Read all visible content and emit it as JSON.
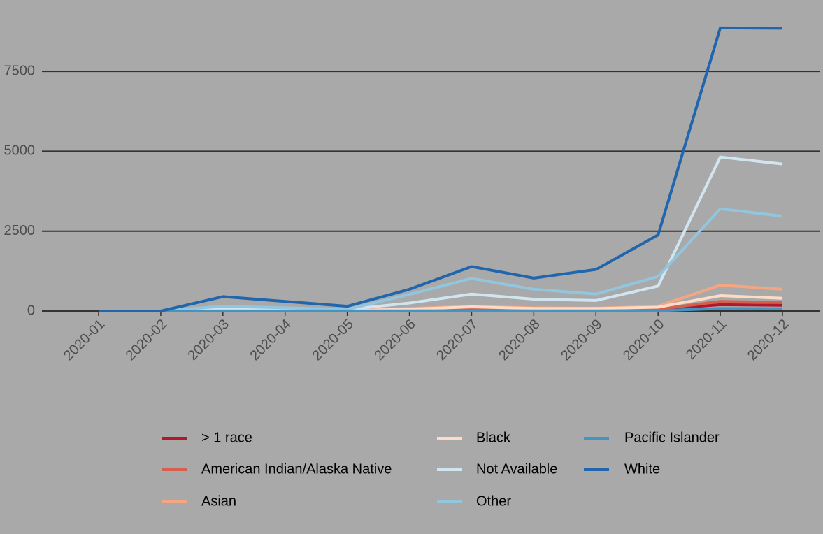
{
  "chart_data": {
    "type": "line",
    "categories": [
      "2020-01",
      "2020-02",
      "2020-03",
      "2020-04",
      "2020-05",
      "2020-06",
      "2020-07",
      "2020-08",
      "2020-09",
      "2020-10",
      "2020-11",
      "2020-12"
    ],
    "series": [
      {
        "name": "> 1 race",
        "color": "#b2182b",
        "values": [
          0,
          0,
          5,
          5,
          5,
          15,
          30,
          20,
          20,
          50,
          200,
          180
        ]
      },
      {
        "name": "American Indian/Alaska Native",
        "color": "#d6604d",
        "values": [
          0,
          0,
          5,
          5,
          5,
          20,
          40,
          30,
          30,
          60,
          300,
          270
        ]
      },
      {
        "name": "Asian",
        "color": "#f4a582",
        "values": [
          0,
          0,
          20,
          20,
          10,
          80,
          150,
          100,
          90,
          150,
          810,
          680
        ]
      },
      {
        "name": "Black",
        "color": "#fddbc7",
        "values": [
          0,
          0,
          20,
          20,
          10,
          60,
          130,
          80,
          80,
          120,
          480,
          400
        ]
      },
      {
        "name": "Not Available",
        "color": "#d1e5f0",
        "values": [
          0,
          0,
          100,
          80,
          50,
          250,
          530,
          370,
          330,
          780,
          4820,
          4600
        ]
      },
      {
        "name": "Other",
        "color": "#92c5de",
        "values": [
          0,
          0,
          150,
          100,
          50,
          520,
          1020,
          680,
          530,
          1080,
          3200,
          2970
        ]
      },
      {
        "name": "Pacific Islander",
        "color": "#4393c3",
        "values": [
          0,
          0,
          2,
          2,
          2,
          5,
          10,
          5,
          5,
          10,
          80,
          70
        ]
      },
      {
        "name": "White",
        "color": "#2166ac",
        "values": [
          0,
          0,
          450,
          300,
          150,
          680,
          1390,
          1030,
          1300,
          2380,
          8860,
          8850
        ]
      }
    ],
    "ylim": [
      0,
      9000
    ],
    "yticks": [
      0,
      2500,
      5000,
      7500
    ],
    "grid": true
  }
}
